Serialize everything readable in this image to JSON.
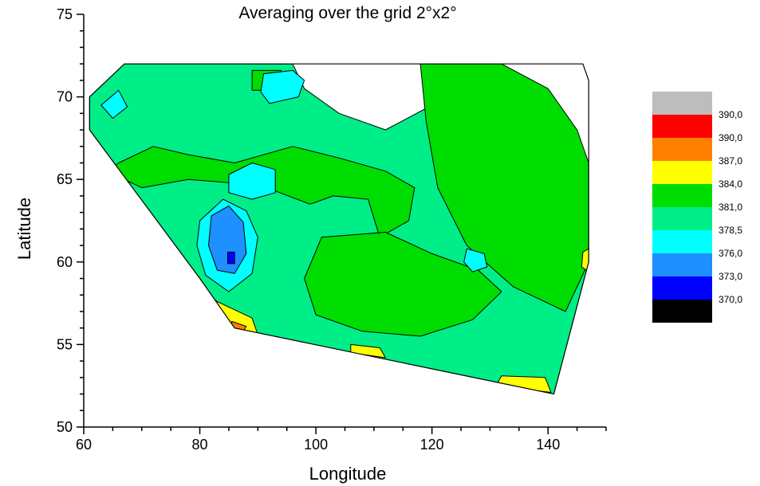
{
  "chart_data": {
    "type": "contour",
    "title": "Averaging over the grid 2°x2°",
    "xlabel": "Longitude",
    "ylabel": "Latitude",
    "xlim": [
      60,
      150
    ],
    "ylim": [
      50,
      75
    ],
    "x_ticks": [
      "60",
      "80",
      "100",
      "120",
      "140"
    ],
    "y_ticks": [
      "50",
      "55",
      "60",
      "65",
      "70",
      "75"
    ],
    "data_outline": [
      [
        61,
        70
      ],
      [
        67,
        72
      ],
      [
        146,
        72
      ],
      [
        147,
        71
      ],
      [
        147,
        60
      ],
      [
        141,
        52
      ],
      [
        86,
        56
      ],
      [
        80,
        59
      ],
      [
        61,
        68
      ]
    ],
    "legend": {
      "labels": [
        "390,0",
        "390,0",
        "387,0",
        "384,0",
        "381,0",
        "378,5",
        "376,0",
        "373,0",
        "370,0"
      ],
      "colors": [
        "#bdbdbd",
        "#ff0000",
        "#ff7f00",
        "#ffff00",
        "#00dd00",
        "#00ee88",
        "#00ffff",
        "#1e90ff",
        "#0000ff",
        "#000000"
      ]
    },
    "regions": [
      {
        "level": "381,0",
        "color": "#00ee88",
        "points": [
          [
            61,
            70
          ],
          [
            67,
            72
          ],
          [
            96,
            72
          ],
          [
            98,
            70.5
          ],
          [
            104,
            69
          ],
          [
            112,
            68
          ],
          [
            120,
            69.5
          ],
          [
            126,
            70.5
          ],
          [
            132,
            71
          ],
          [
            138,
            70
          ],
          [
            145,
            67
          ],
          [
            147,
            66
          ],
          [
            147,
            60
          ],
          [
            141,
            52
          ],
          [
            86,
            56
          ],
          [
            80,
            59
          ],
          [
            61,
            68
          ]
        ]
      },
      {
        "level": "384,0",
        "color": "#00dd00",
        "points": [
          [
            118,
            72
          ],
          [
            132,
            72
          ],
          [
            140,
            70.5
          ],
          [
            145,
            68
          ],
          [
            147,
            66
          ],
          [
            147,
            60
          ],
          [
            143,
            57
          ],
          [
            134,
            58.5
          ],
          [
            126,
            61
          ],
          [
            121,
            64.5
          ],
          [
            119,
            68.5
          ]
        ]
      },
      {
        "level": "384,0",
        "color": "#00dd00",
        "points": [
          [
            66,
            66
          ],
          [
            72,
            67
          ],
          [
            78,
            66.5
          ],
          [
            86,
            66
          ],
          [
            96,
            67
          ],
          [
            104,
            66.3
          ],
          [
            112,
            65.5
          ],
          [
            117,
            64.5
          ],
          [
            116,
            62.5
          ],
          [
            111,
            61.5
          ],
          [
            109,
            63.8
          ],
          [
            103,
            64
          ],
          [
            99,
            63.5
          ],
          [
            93,
            64.3
          ],
          [
            85,
            64.8
          ],
          [
            78,
            65
          ],
          [
            70,
            64.5
          ],
          [
            64,
            65.5
          ]
        ]
      },
      {
        "level": "384,0",
        "color": "#00dd00",
        "points": [
          [
            89,
            71.6
          ],
          [
            94,
            71.6
          ],
          [
            94,
            70.4
          ],
          [
            89,
            70.4
          ]
        ]
      },
      {
        "level": "384,0",
        "color": "#00dd00",
        "points": [
          [
            101,
            61.5
          ],
          [
            112,
            61.8
          ],
          [
            120,
            60.5
          ],
          [
            128,
            59.5
          ],
          [
            132,
            58.2
          ],
          [
            127,
            56.5
          ],
          [
            118,
            55.5
          ],
          [
            108,
            55.8
          ],
          [
            100,
            56.8
          ],
          [
            98,
            59
          ]
        ]
      },
      {
        "level": "378,5",
        "color": "#00ffff",
        "points": [
          [
            85,
            65.3
          ],
          [
            89,
            66
          ],
          [
            93,
            65.6
          ],
          [
            93,
            64.2
          ],
          [
            89,
            63.8
          ],
          [
            85,
            64.2
          ]
        ]
      },
      {
        "level": "378,5",
        "color": "#00ffff",
        "points": [
          [
            91,
            71.4
          ],
          [
            96,
            71.6
          ],
          [
            98,
            71
          ],
          [
            97,
            70
          ],
          [
            92,
            69.6
          ],
          [
            90.5,
            70.3
          ]
        ]
      },
      {
        "level": "378,5",
        "color": "#00ffff",
        "points": [
          [
            63,
            69.5
          ],
          [
            66,
            70.4
          ],
          [
            67.5,
            69.4
          ],
          [
            65,
            68.7
          ]
        ]
      },
      {
        "level": "378,5",
        "color": "#00ffff",
        "points": [
          [
            80,
            62.5
          ],
          [
            84,
            63.8
          ],
          [
            88,
            63.1
          ],
          [
            90,
            61.5
          ],
          [
            89,
            59.3
          ],
          [
            85,
            58.2
          ],
          [
            81,
            59.2
          ],
          [
            79.5,
            61
          ]
        ]
      },
      {
        "level": "378,5",
        "color": "#00ffff",
        "points": [
          [
            126,
            60.8
          ],
          [
            129,
            60.5
          ],
          [
            129.5,
            59.7
          ],
          [
            127,
            59.4
          ],
          [
            125.5,
            60
          ]
        ]
      },
      {
        "level": "376,0",
        "color": "#1e90ff",
        "points": [
          [
            82,
            62.8
          ],
          [
            85,
            63.4
          ],
          [
            87.5,
            62.4
          ],
          [
            88,
            60.5
          ],
          [
            86,
            59.3
          ],
          [
            83,
            59.5
          ],
          [
            81.5,
            61
          ]
        ]
      },
      {
        "level": "373,0",
        "color": "#0000ff",
        "points": [
          [
            84.8,
            60.6
          ],
          [
            86,
            60.6
          ],
          [
            86,
            59.9
          ],
          [
            84.8,
            59.9
          ]
        ]
      },
      {
        "level": "387,0",
        "color": "#ffff00",
        "points": [
          [
            74,
            60
          ],
          [
            78,
            58.6
          ],
          [
            82,
            56.8
          ],
          [
            86,
            56
          ],
          [
            90,
            55.6
          ],
          [
            89,
            56.6
          ],
          [
            83,
            57.6
          ],
          [
            79,
            58.6
          ],
          [
            76,
            60.2
          ]
        ]
      },
      {
        "level": "387,0",
        "color": "#ffff00",
        "points": [
          [
            106,
            54.5
          ],
          [
            112,
            54.2
          ],
          [
            111,
            54.8
          ],
          [
            106,
            55
          ]
        ]
      },
      {
        "level": "387,0",
        "color": "#ffff00",
        "points": [
          [
            131,
            52.5
          ],
          [
            140.5,
            52.1
          ],
          [
            139.5,
            53
          ],
          [
            132,
            53.1
          ]
        ]
      },
      {
        "level": "387,0",
        "color": "#ffff00",
        "points": [
          [
            146,
            60.6
          ],
          [
            147,
            60.8
          ],
          [
            147,
            59.4
          ],
          [
            145.8,
            59.7
          ]
        ]
      },
      {
        "level": "390,0",
        "color": "#ff7f00",
        "points": [
          [
            75.5,
            60.1
          ],
          [
            79,
            58.8
          ],
          [
            78.5,
            58.4
          ],
          [
            75.5,
            59.6
          ]
        ]
      },
      {
        "level": "390,0",
        "color": "#ff7f00",
        "points": [
          [
            85.5,
            56.4
          ],
          [
            88,
            56.1
          ],
          [
            87.5,
            55.8
          ],
          [
            85.5,
            56
          ]
        ]
      },
      {
        "level": "390,0",
        "color": "#ff0000",
        "points": [
          [
            76,
            59.9
          ],
          [
            78.4,
            58.9
          ],
          [
            78.2,
            58.7
          ],
          [
            76,
            59.6
          ]
        ]
      }
    ]
  }
}
